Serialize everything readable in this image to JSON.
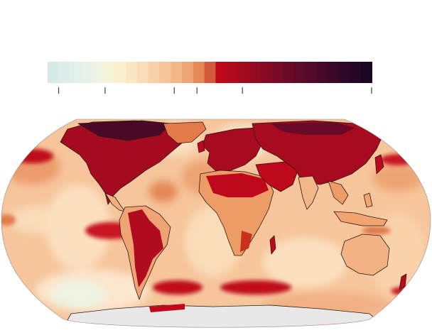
{
  "map": {
    "projection": "Robinson",
    "ocean_fill": "#f7c59a",
    "antarctica_fill": "#e8e8e8",
    "coastline_color": "#2b1a14"
  },
  "legend": {
    "scale_colors": [
      "#d6eae6",
      "#dcedea",
      "#e3efea",
      "#e8f1e7",
      "#eef3e2",
      "#f4f3d8",
      "#f9f0d0",
      "#fbe6c4",
      "#fbdcb8",
      "#f9d0a8",
      "#f6c498",
      "#f3b787",
      "#eea676",
      "#e58a56",
      "#d05a3a",
      "#c0081c",
      "#b10a1e",
      "#a20a20",
      "#940a22",
      "#860a24",
      "#780a26",
      "#6b0a28",
      "#5e0a29",
      "#52092a",
      "#46092a",
      "#3a0829",
      "#2f0727",
      "#240625",
      "#1a0522"
    ],
    "tick_positions_fraction": [
      0.034,
      0.177,
      0.39,
      0.46,
      0.6,
      1.0
    ]
  }
}
